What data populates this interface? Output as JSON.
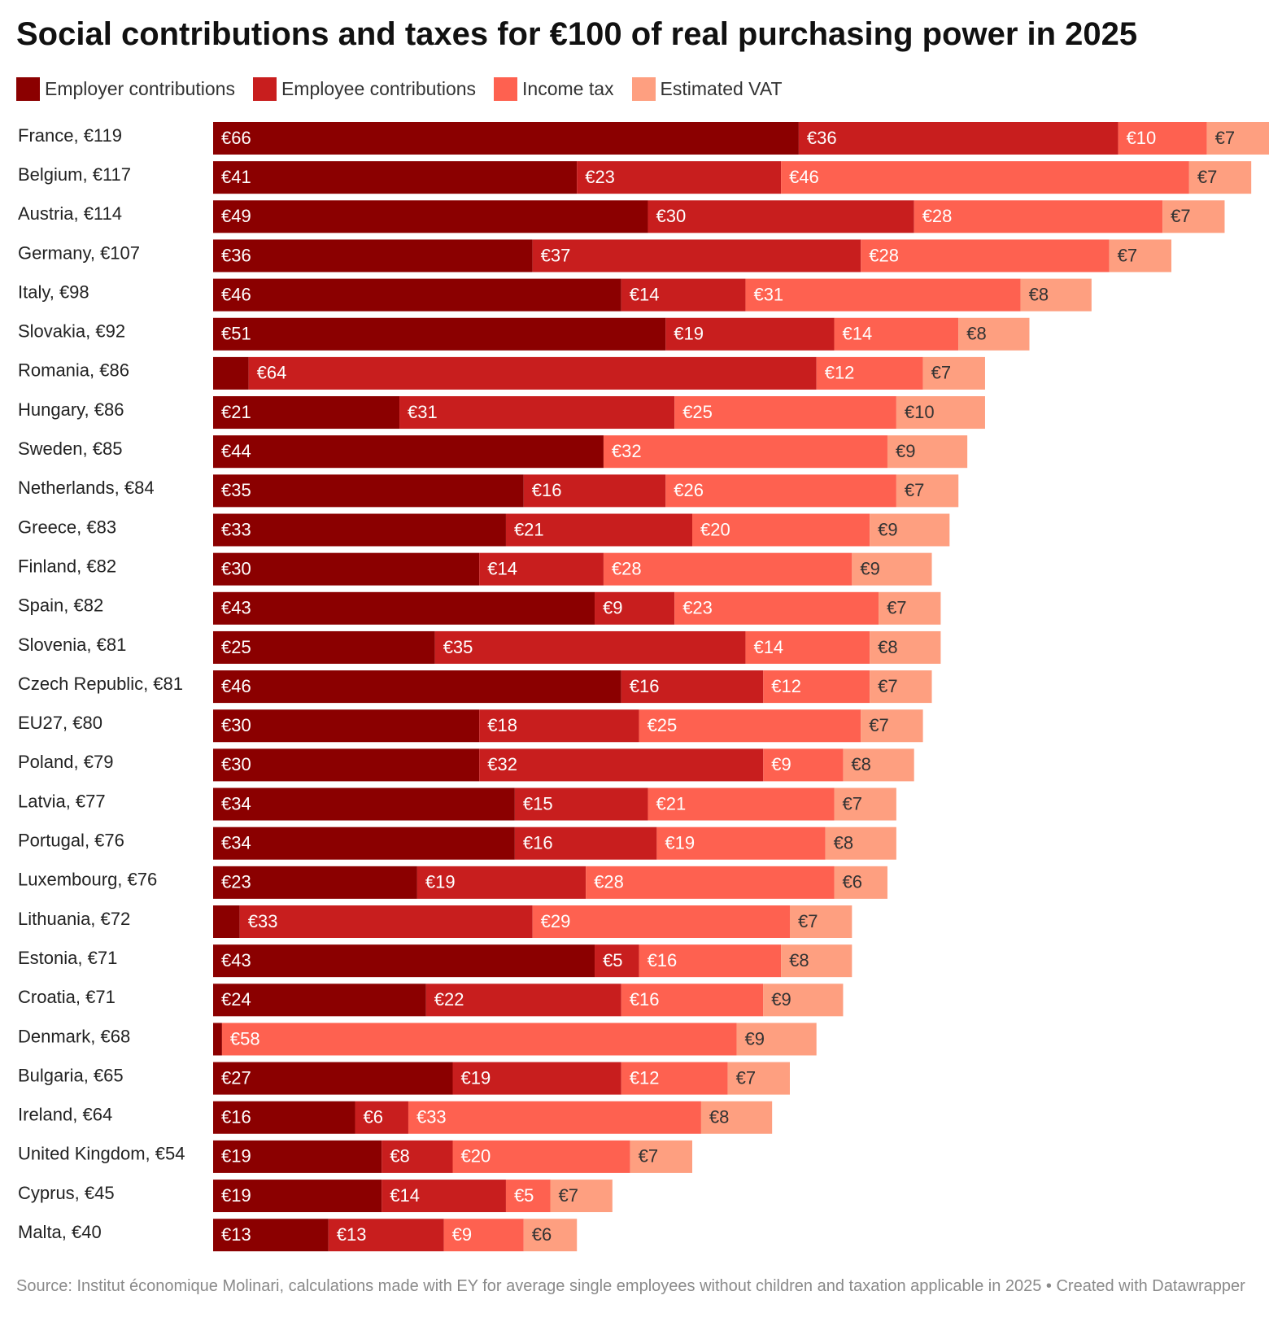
{
  "chart_data": {
    "type": "bar",
    "orientation": "horizontal",
    "stacked": true,
    "title": "Social contributions and taxes for €100 of real purchasing power in 2025",
    "xlabel": "",
    "ylabel": "",
    "xlim": [
      0,
      119
    ],
    "grid": false,
    "legend_position": "top-left",
    "value_prefix": "€",
    "categories": [
      "France, €119",
      "Belgium, €117",
      "Austria, €114",
      "Germany, €107",
      "Italy, €98",
      "Slovakia, €92",
      "Romania, €86",
      "Hungary, €86",
      "Sweden, €85",
      "Netherlands, €84",
      "Greece, €83",
      "Finland, €82",
      "Spain, €82",
      "Slovenia, €81",
      "Czech Republic, €81",
      "EU27, €80",
      "Poland, €79",
      "Latvia, €77",
      "Portugal, €76",
      "Luxembourg, €76",
      "Lithuania, €72",
      "Estonia, €71",
      "Croatia, €71",
      "Denmark, €68",
      "Bulgaria, €65",
      "Ireland, €64",
      "United Kingdom, €54",
      "Cyprus, €45",
      "Malta, €40"
    ],
    "series": [
      {
        "name": "Employer contributions",
        "color": "#8b0000",
        "values": [
          66,
          41,
          49,
          36,
          46,
          51,
          4,
          21,
          44,
          35,
          33,
          30,
          43,
          25,
          46,
          30,
          30,
          34,
          34,
          23,
          3,
          43,
          24,
          1,
          27,
          16,
          19,
          19,
          13
        ],
        "labels": [
          "€66",
          "€41",
          "€49",
          "€36",
          "€46",
          "€51",
          "",
          "€21",
          "€44",
          "€35",
          "€33",
          "€30",
          "€43",
          "€25",
          "€46",
          "€30",
          "€30",
          "€34",
          "€34",
          "€23",
          "",
          "€43",
          "€24",
          "",
          "€27",
          "€16",
          "€19",
          "€19",
          "€13"
        ]
      },
      {
        "name": "Employee contributions",
        "color": "#c81e1e",
        "values": [
          36,
          23,
          30,
          37,
          14,
          19,
          64,
          31,
          0,
          16,
          21,
          14,
          9,
          35,
          16,
          18,
          32,
          15,
          16,
          19,
          33,
          5,
          22,
          0,
          19,
          6,
          8,
          14,
          13
        ],
        "labels": [
          "€36",
          "€23",
          "€30",
          "€37",
          "€14",
          "€19",
          "€64",
          "€31",
          "",
          "€16",
          "€21",
          "€14",
          "€9",
          "€35",
          "€16",
          "€18",
          "€32",
          "€15",
          "€16",
          "€19",
          "€33",
          "€5",
          "€22",
          "",
          "€19",
          "€6",
          "€8",
          "€14",
          "€13"
        ]
      },
      {
        "name": "Income tax",
        "color": "#fe6150",
        "values": [
          10,
          46,
          28,
          28,
          31,
          14,
          12,
          25,
          32,
          26,
          20,
          28,
          23,
          14,
          12,
          25,
          9,
          21,
          19,
          28,
          29,
          16,
          16,
          58,
          12,
          33,
          20,
          5,
          9
        ],
        "labels": [
          "€10",
          "€46",
          "€28",
          "€28",
          "€31",
          "€14",
          "€12",
          "€25",
          "€32",
          "€26",
          "€20",
          "€28",
          "€23",
          "€14",
          "€12",
          "€25",
          "€9",
          "€21",
          "€19",
          "€28",
          "€29",
          "€16",
          "€16",
          "€58",
          "€12",
          "€33",
          "€20",
          "€5",
          "€9"
        ]
      },
      {
        "name": "Estimated VAT",
        "color": "#fe9f80",
        "values": [
          7,
          7,
          7,
          7,
          8,
          8,
          7,
          10,
          9,
          7,
          9,
          9,
          7,
          8,
          7,
          7,
          8,
          7,
          8,
          6,
          7,
          8,
          9,
          9,
          7,
          8,
          7,
          7,
          6
        ],
        "labels": [
          "€7",
          "€7",
          "€7",
          "€7",
          "€8",
          "€8",
          "€7",
          "€10",
          "€9",
          "€7",
          "€9",
          "€9",
          "€7",
          "€8",
          "€7",
          "€7",
          "€8",
          "€7",
          "€8",
          "€6",
          "€7",
          "€8",
          "€9",
          "€9",
          "€7",
          "€8",
          "€7",
          "€7",
          "€6"
        ]
      }
    ]
  },
  "footer": {
    "source": "Source: Institut économique Molinari, calculations made with EY for average single employees without children and taxation applicable in 2025 • Created with Datawrapper"
  }
}
